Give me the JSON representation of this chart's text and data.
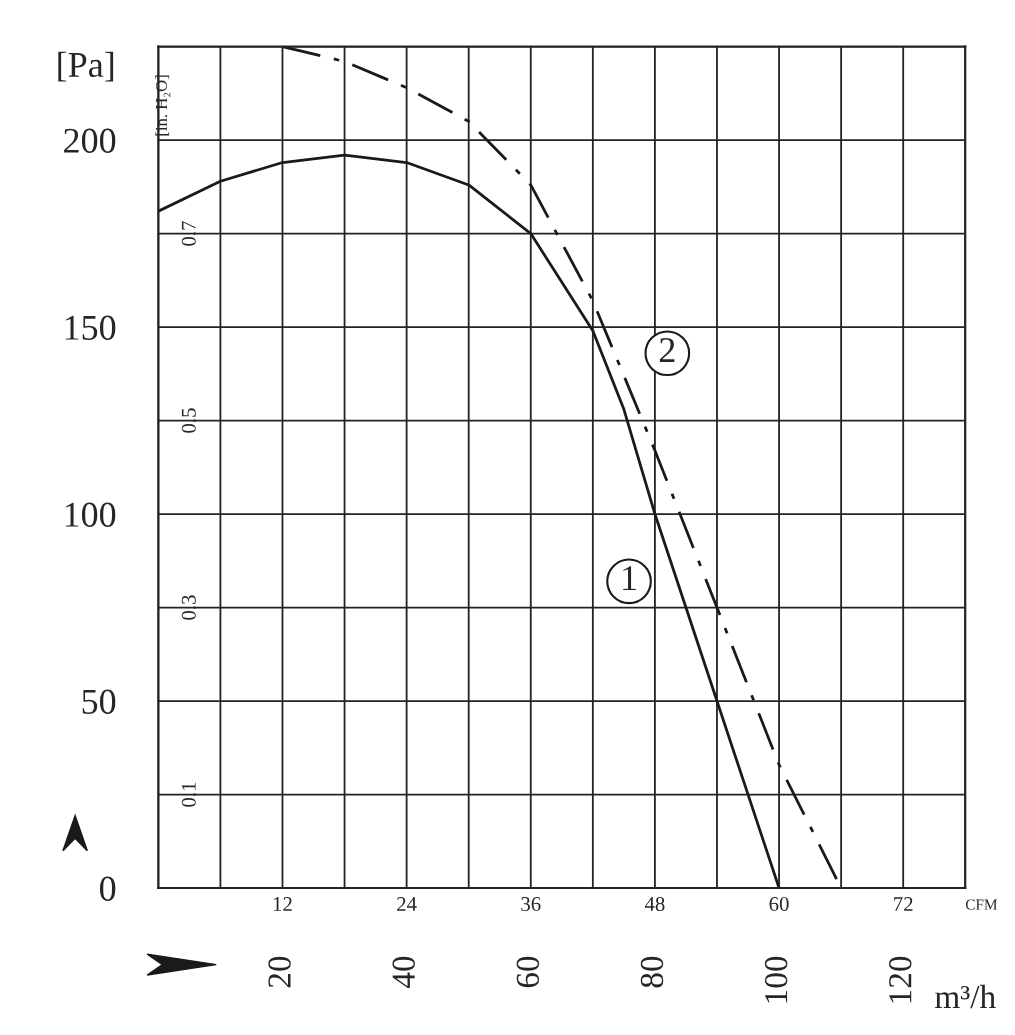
{
  "chart_data": {
    "type": "line",
    "ylabel": "[Pa]",
    "y2label": "[in. H₂O]",
    "xlabel": "CFM",
    "x2label": "m³/h",
    "xlim": [
      0,
      78
    ],
    "xticks": [
      {
        "value": 0,
        "label": null
      },
      {
        "value": 6,
        "label": null
      },
      12,
      {
        "value": 18,
        "label": null
      },
      24,
      {
        "value": 30,
        "label": null
      },
      36,
      {
        "value": 42,
        "label": null
      },
      48,
      {
        "value": 54,
        "label": null
      },
      60,
      {
        "value": 66,
        "label": null
      },
      72,
      {
        "value": 78,
        "label": null
      }
    ],
    "ylim": [
      0,
      225
    ],
    "yticks": [
      0,
      {
        "value": 25,
        "label": null
      },
      50,
      {
        "value": 75,
        "label": null
      },
      100,
      {
        "value": 125,
        "label": null
      },
      150,
      {
        "value": 175,
        "label": null
      },
      200,
      {
        "value": 225,
        "label": null
      }
    ],
    "y2lim": [
      0,
      0.9
    ],
    "y2ticks": [
      0.1,
      0.3,
      0.5,
      0.7
    ],
    "x2lim": [
      0,
      130
    ],
    "x2ticks": [
      20,
      40,
      60,
      80,
      100,
      120
    ],
    "grid": true,
    "series": [
      {
        "color": "#1a1a1a",
        "line_style": "solid",
        "x": [
          0,
          6,
          12,
          18,
          24,
          30,
          36,
          42,
          45,
          48,
          54,
          60
        ],
        "values": [
          181,
          189,
          194,
          196,
          194,
          188,
          175,
          149,
          128,
          100,
          50,
          0
        ]
      },
      {
        "color": "#1a1a1a",
        "line_style": "dashed",
        "x": [
          12,
          18,
          24,
          30,
          36,
          42,
          48,
          54,
          60,
          66
        ],
        "values": [
          225,
          221,
          214,
          205,
          188,
          157,
          117,
          75,
          33,
          0
        ]
      }
    ],
    "annotations": [
      {
        "text": "1",
        "x": 45.5,
        "y": 82
      },
      {
        "text": "2",
        "x": 49.2,
        "y": 143
      }
    ]
  }
}
